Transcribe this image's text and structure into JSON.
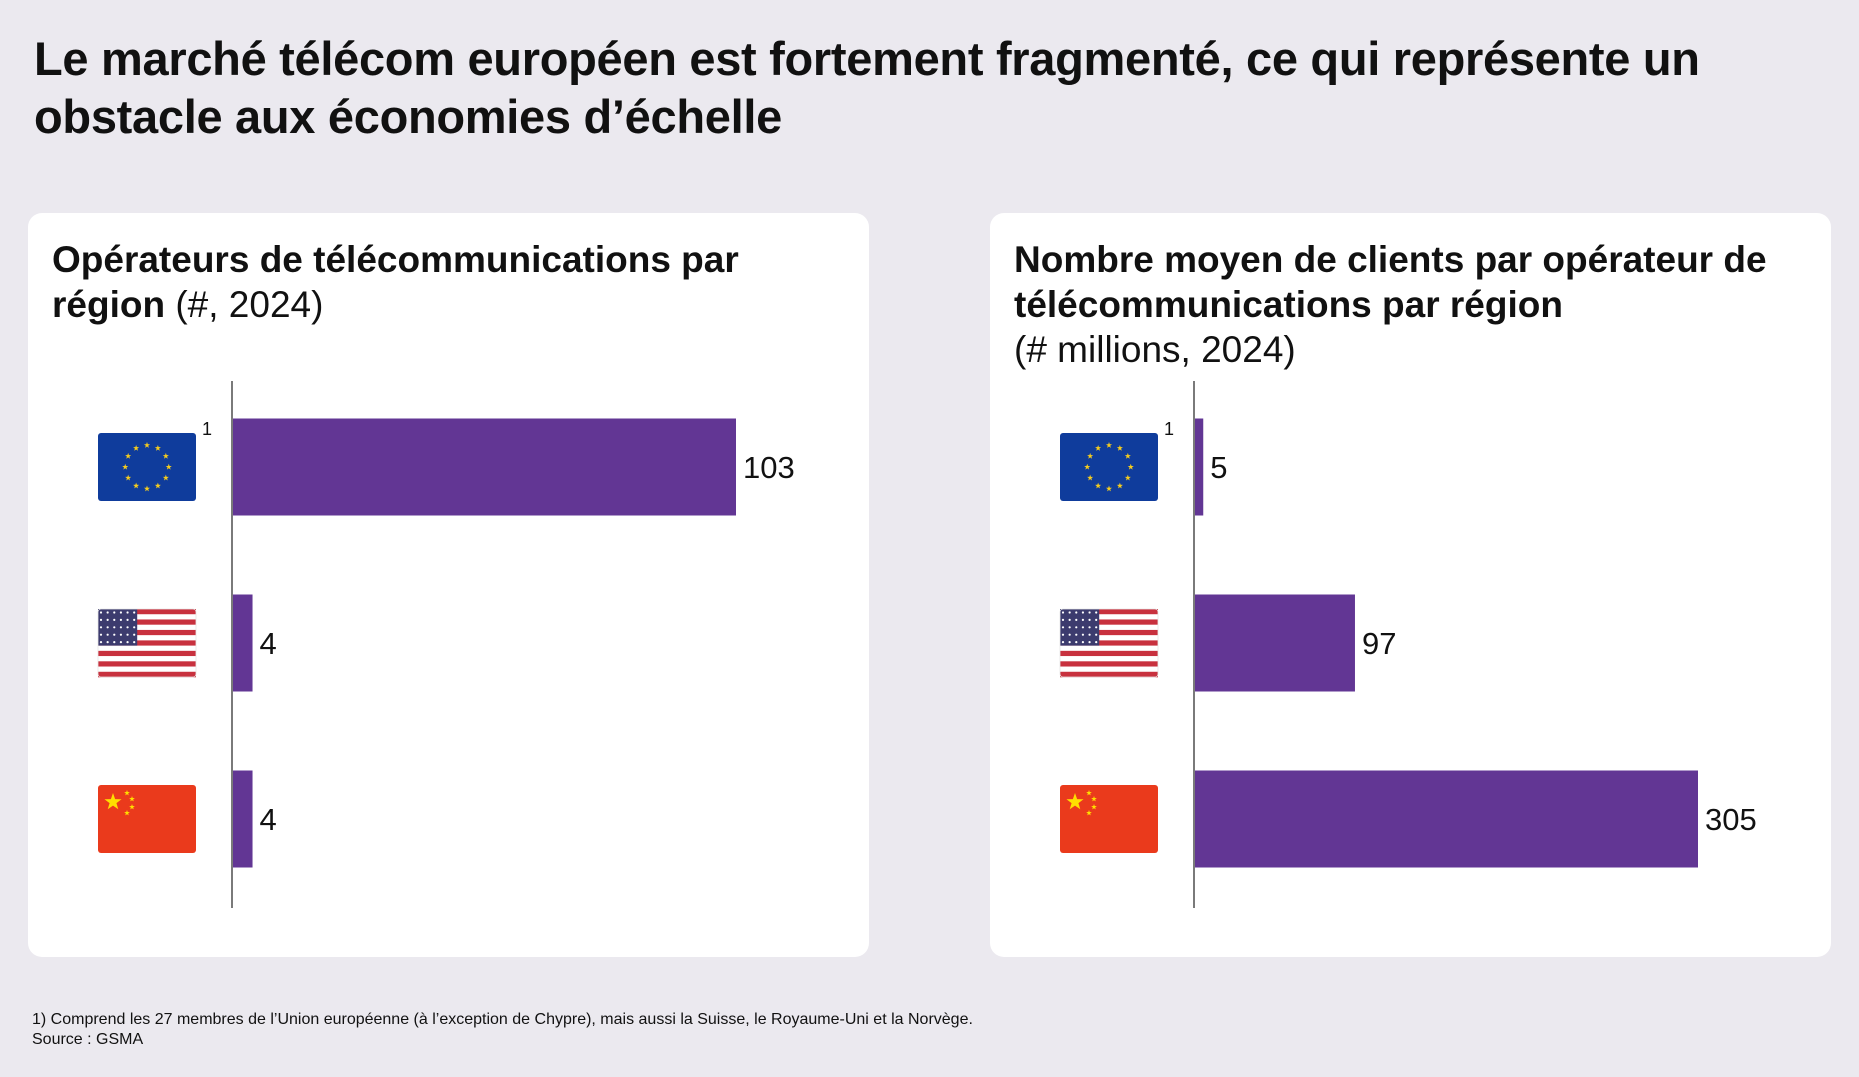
{
  "page_title": "Le marché télécom européen est fortement fragmenté, ce qui représente un obstacle aux économies d’échelle",
  "colors": {
    "bar": "#623694",
    "axis": "#7a7a7a",
    "background": "#ebe9ef",
    "panel": "#ffffff"
  },
  "regions": [
    {
      "name": "EU",
      "icon": "eu-flag-icon",
      "footnote_marker": "1"
    },
    {
      "name": "USA",
      "icon": "us-flag-icon",
      "footnote_marker": ""
    },
    {
      "name": "China",
      "icon": "china-flag-icon",
      "footnote_marker": ""
    }
  ],
  "chart_data": [
    {
      "type": "bar",
      "orientation": "horizontal",
      "title": "Opérateurs de télécommunications par région",
      "subtitle": "(#, 2024)",
      "categories": [
        "EU",
        "USA",
        "China"
      ],
      "values": [
        103,
        4,
        4
      ],
      "value_labels": [
        "103",
        "4",
        "4"
      ],
      "xlim": [
        0,
        103
      ],
      "grid": false
    },
    {
      "type": "bar",
      "orientation": "horizontal",
      "title": "Nombre moyen de clients par opérateur de télécommunications par région",
      "subtitle": "(# millions, 2024)",
      "categories": [
        "EU",
        "USA",
        "China"
      ],
      "values": [
        5,
        97,
        305
      ],
      "value_labels": [
        "5",
        "97",
        "305"
      ],
      "xlim": [
        0,
        305
      ],
      "grid": false
    }
  ],
  "footnote": "1) Comprend les 27 membres de l’Union européenne (à l’exception de Chypre), mais aussi la Suisse, le Royaume-Uni et la Norvège.",
  "source": "Source : GSMA"
}
